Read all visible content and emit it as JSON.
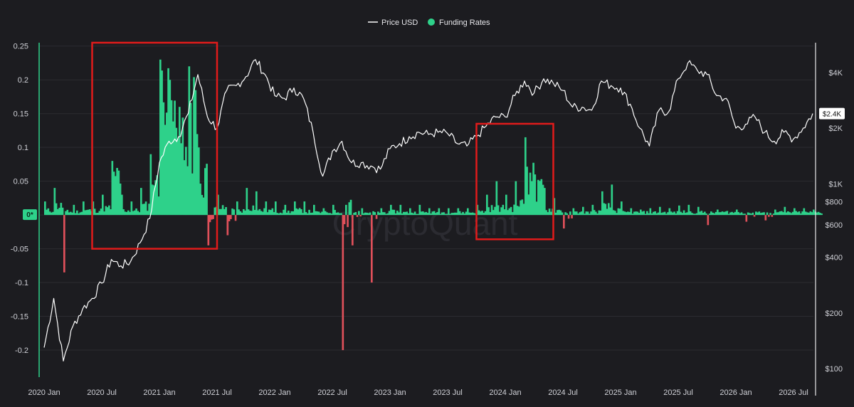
{
  "chart_data": {
    "type": "line",
    "watermark": "CryptoQuant",
    "legend": [
      {
        "name": "Price USD",
        "color": "#ffffff",
        "shape": "line"
      },
      {
        "name": "Funding Rates",
        "color": "#2ed18a",
        "shape": "dot"
      }
    ],
    "x_ticks": [
      "2020 Jan",
      "2020 Jul",
      "2021 Jan",
      "2021 Jul",
      "2022 Jan",
      "2022 Jul",
      "2023 Jan",
      "2023 Jul",
      "2024 Jan",
      "2024 Jul",
      "2025 Jan",
      "2025 Jul",
      "2026 Jan",
      "2026 Jul"
    ],
    "y_left_ticks": [
      0.25,
      0.2,
      0.15,
      0.1,
      0.05,
      0,
      -0.05,
      -0.1,
      -0.15,
      -0.2
    ],
    "y_left_tick_labels": [
      "0.25",
      "0.2",
      "0.15",
      "0.1",
      "0.05",
      "0*",
      "-0.05",
      "-0.1",
      "-0.15",
      "-0.2"
    ],
    "y_left_range": [
      -0.24,
      0.255
    ],
    "y_right_scale": "log",
    "y_right_ticks": [
      4000,
      2000,
      1000,
      800,
      600,
      400,
      200,
      100
    ],
    "y_right_tick_labels": [
      "$4K",
      "$2K",
      "$1K",
      "$800",
      "$600",
      "$400",
      "$200",
      "$100"
    ],
    "y_right_range": [
      90,
      5800
    ],
    "current_price_label": "$2.4K",
    "current_price": 2400,
    "price_series": [
      {
        "date": "2020-01",
        "value": 130
      },
      {
        "date": "2020-02",
        "value": 240
      },
      {
        "date": "2020-03",
        "value": 110
      },
      {
        "date": "2020-04",
        "value": 170
      },
      {
        "date": "2020-05",
        "value": 210
      },
      {
        "date": "2020-06",
        "value": 240
      },
      {
        "date": "2020-07",
        "value": 290
      },
      {
        "date": "2020-08",
        "value": 390
      },
      {
        "date": "2020-09",
        "value": 360
      },
      {
        "date": "2020-10",
        "value": 380
      },
      {
        "date": "2020-11",
        "value": 480
      },
      {
        "date": "2020-12",
        "value": 650
      },
      {
        "date": "2021-01",
        "value": 1300
      },
      {
        "date": "2021-02",
        "value": 1700
      },
      {
        "date": "2021-03",
        "value": 1800
      },
      {
        "date": "2021-04",
        "value": 2400
      },
      {
        "date": "2021-05",
        "value": 3900
      },
      {
        "date": "2021-06",
        "value": 2300
      },
      {
        "date": "2021-07",
        "value": 2000
      },
      {
        "date": "2021-08",
        "value": 3200
      },
      {
        "date": "2021-09",
        "value": 3400
      },
      {
        "date": "2021-10",
        "value": 3800
      },
      {
        "date": "2021-11",
        "value": 4700
      },
      {
        "date": "2021-12",
        "value": 3900
      },
      {
        "date": "2022-01",
        "value": 3000
      },
      {
        "date": "2022-02",
        "value": 2900
      },
      {
        "date": "2022-03",
        "value": 3300
      },
      {
        "date": "2022-04",
        "value": 2900
      },
      {
        "date": "2022-05",
        "value": 1900
      },
      {
        "date": "2022-06",
        "value": 1100
      },
      {
        "date": "2022-07",
        "value": 1500
      },
      {
        "date": "2022-08",
        "value": 1700
      },
      {
        "date": "2022-09",
        "value": 1300
      },
      {
        "date": "2022-10",
        "value": 1300
      },
      {
        "date": "2022-11",
        "value": 1250
      },
      {
        "date": "2022-12",
        "value": 1200
      },
      {
        "date": "2023-01",
        "value": 1550
      },
      {
        "date": "2023-02",
        "value": 1650
      },
      {
        "date": "2023-03",
        "value": 1800
      },
      {
        "date": "2023-04",
        "value": 1900
      },
      {
        "date": "2023-05",
        "value": 1850
      },
      {
        "date": "2023-06",
        "value": 1900
      },
      {
        "date": "2023-07",
        "value": 1870
      },
      {
        "date": "2023-08",
        "value": 1650
      },
      {
        "date": "2023-09",
        "value": 1600
      },
      {
        "date": "2023-10",
        "value": 1800
      },
      {
        "date": "2023-11",
        "value": 2050
      },
      {
        "date": "2023-12",
        "value": 2300
      },
      {
        "date": "2024-01",
        "value": 2300
      },
      {
        "date": "2024-02",
        "value": 3000
      },
      {
        "date": "2024-03",
        "value": 3600
      },
      {
        "date": "2024-04",
        "value": 3100
      },
      {
        "date": "2024-05",
        "value": 3700
      },
      {
        "date": "2024-06",
        "value": 3500
      },
      {
        "date": "2024-07",
        "value": 3200
      },
      {
        "date": "2024-08",
        "value": 2600
      },
      {
        "date": "2024-09",
        "value": 2600
      },
      {
        "date": "2024-10",
        "value": 2500
      },
      {
        "date": "2024-11",
        "value": 3600
      },
      {
        "date": "2024-12",
        "value": 3400
      },
      {
        "date": "2025-01",
        "value": 3300
      },
      {
        "date": "2025-02",
        "value": 2700
      },
      {
        "date": "2025-03",
        "value": 2000
      },
      {
        "date": "2025-04",
        "value": 1600
      },
      {
        "date": "2025-05",
        "value": 2500
      },
      {
        "date": "2025-06",
        "value": 2450
      },
      {
        "date": "2025-07",
        "value": 3700
      },
      {
        "date": "2025-08",
        "value": 4500
      },
      {
        "date": "2025-09",
        "value": 4100
      },
      {
        "date": "2025-10",
        "value": 3900
      },
      {
        "date": "2025-11",
        "value": 3000
      },
      {
        "date": "2025-12",
        "value": 2900
      },
      {
        "date": "2026-01",
        "value": 2000
      },
      {
        "date": "2026-02",
        "value": 2100
      },
      {
        "date": "2026-03",
        "value": 2300
      },
      {
        "date": "2026-04",
        "value": 1900
      },
      {
        "date": "2026-05",
        "value": 1700
      },
      {
        "date": "2026-06",
        "value": 1900
      },
      {
        "date": "2026-07",
        "value": 1750
      },
      {
        "date": "2026-08",
        "value": 2000
      },
      {
        "date": "2026-09",
        "value": 2400
      }
    ],
    "funding_series": [
      {
        "date": "2020-01",
        "value": 0.02
      },
      {
        "date": "2020-02",
        "value": 0.04
      },
      {
        "date": "2020-03",
        "value": -0.085
      },
      {
        "date": "2020-04",
        "value": 0.015
      },
      {
        "date": "2020-05",
        "value": 0.02
      },
      {
        "date": "2020-06",
        "value": 0.02
      },
      {
        "date": "2020-07",
        "value": 0.03
      },
      {
        "date": "2020-08",
        "value": 0.08
      },
      {
        "date": "2020-09",
        "value": 0.03
      },
      {
        "date": "2020-10",
        "value": 0.02
      },
      {
        "date": "2020-11",
        "value": 0.04
      },
      {
        "date": "2020-12",
        "value": 0.09
      },
      {
        "date": "2021-01",
        "value": 0.23
      },
      {
        "date": "2021-02",
        "value": 0.2
      },
      {
        "date": "2021-03",
        "value": 0.16
      },
      {
        "date": "2021-04",
        "value": 0.22
      },
      {
        "date": "2021-05",
        "value": 0.1
      },
      {
        "date": "2021-06",
        "value": -0.045
      },
      {
        "date": "2021-07",
        "value": 0.03
      },
      {
        "date": "2021-08",
        "value": -0.03
      },
      {
        "date": "2021-09",
        "value": 0.02
      },
      {
        "date": "2021-10",
        "value": 0.04
      },
      {
        "date": "2021-11",
        "value": 0.035
      },
      {
        "date": "2021-12",
        "value": 0.02
      },
      {
        "date": "2022-01",
        "value": 0.02
      },
      {
        "date": "2022-02",
        "value": 0.015
      },
      {
        "date": "2022-03",
        "value": 0.02
      },
      {
        "date": "2022-04",
        "value": 0.02
      },
      {
        "date": "2022-05",
        "value": 0.015
      },
      {
        "date": "2022-06",
        "value": 0.01
      },
      {
        "date": "2022-07",
        "value": 0.015
      },
      {
        "date": "2022-08",
        "value": -0.2
      },
      {
        "date": "2022-09",
        "value": -0.045
      },
      {
        "date": "2022-10",
        "value": 0.01
      },
      {
        "date": "2022-11",
        "value": -0.1
      },
      {
        "date": "2022-12",
        "value": 0.01
      },
      {
        "date": "2023-01",
        "value": 0.015
      },
      {
        "date": "2023-02",
        "value": 0.015
      },
      {
        "date": "2023-03",
        "value": 0.01
      },
      {
        "date": "2023-04",
        "value": 0.015
      },
      {
        "date": "2023-05",
        "value": 0.01
      },
      {
        "date": "2023-06",
        "value": 0.01
      },
      {
        "date": "2023-07",
        "value": 0.01
      },
      {
        "date": "2023-08",
        "value": 0.01
      },
      {
        "date": "2023-09",
        "value": 0.01
      },
      {
        "date": "2023-10",
        "value": 0.015
      },
      {
        "date": "2023-11",
        "value": 0.03
      },
      {
        "date": "2023-12",
        "value": 0.05
      },
      {
        "date": "2024-01",
        "value": 0.03
      },
      {
        "date": "2024-02",
        "value": 0.05
      },
      {
        "date": "2024-03",
        "value": 0.115
      },
      {
        "date": "2024-04",
        "value": 0.06
      },
      {
        "date": "2024-05",
        "value": 0.04
      },
      {
        "date": "2024-06",
        "value": 0.025
      },
      {
        "date": "2024-07",
        "value": -0.02
      },
      {
        "date": "2024-08",
        "value": 0.01
      },
      {
        "date": "2024-09",
        "value": 0.012
      },
      {
        "date": "2024-10",
        "value": 0.015
      },
      {
        "date": "2024-11",
        "value": 0.035
      },
      {
        "date": "2024-12",
        "value": 0.045
      },
      {
        "date": "2025-01",
        "value": 0.02
      },
      {
        "date": "2025-02",
        "value": 0.01
      },
      {
        "date": "2025-03",
        "value": 0.008
      },
      {
        "date": "2025-04",
        "value": 0.01
      },
      {
        "date": "2025-05",
        "value": 0.012
      },
      {
        "date": "2025-06",
        "value": 0.01
      },
      {
        "date": "2025-07",
        "value": 0.014
      },
      {
        "date": "2025-08",
        "value": 0.015
      },
      {
        "date": "2025-09",
        "value": 0.012
      },
      {
        "date": "2025-10",
        "value": -0.015
      },
      {
        "date": "2025-11",
        "value": 0.008
      },
      {
        "date": "2025-12",
        "value": 0.006
      },
      {
        "date": "2026-01",
        "value": 0.008
      },
      {
        "date": "2026-02",
        "value": -0.01
      },
      {
        "date": "2026-03",
        "value": 0.005
      },
      {
        "date": "2026-04",
        "value": -0.008
      },
      {
        "date": "2026-05",
        "value": 0.008
      },
      {
        "date": "2026-06",
        "value": 0.012
      },
      {
        "date": "2026-07",
        "value": 0.01
      },
      {
        "date": "2026-08",
        "value": 0.01
      },
      {
        "date": "2026-09",
        "value": 0.008
      }
    ],
    "highlight_boxes": [
      {
        "start": "2020-06",
        "end": "2021-07",
        "y_top": 0.255,
        "y_bottom": -0.05
      },
      {
        "start": "2023-10",
        "end": "2024-06",
        "y_top": 0.135,
        "y_bottom": -0.036
      }
    ]
  }
}
